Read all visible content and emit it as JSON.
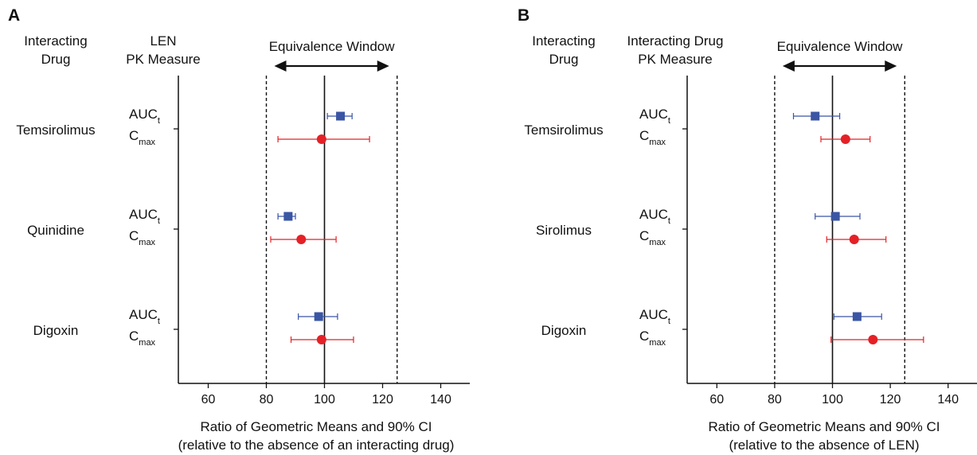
{
  "chart_data": [
    {
      "type": "scatter",
      "panel_label": "A",
      "header_col1": [
        "Interacting",
        "Drug"
      ],
      "header_col2": [
        "LEN",
        "PK Measure"
      ],
      "window_label": "Equivalence Window",
      "xlabel": [
        "Ratio of Geometric Means and 90% CI",
        "(relative to the absence of an interacting drug)"
      ],
      "xlim": [
        50,
        150
      ],
      "xticks": [
        60,
        80,
        100,
        120,
        140
      ],
      "reference_line": 100,
      "equivalence_bounds": [
        80,
        125
      ],
      "measure_labels": {
        "auc_base": "AUC",
        "auc_sub": "t",
        "cmax_base": "C",
        "cmax_sub": "max"
      },
      "drugs": [
        {
          "name": "Temsirolimus",
          "auc": {
            "value": 105.5,
            "ci": [
              101,
              109.5
            ]
          },
          "cmax": {
            "value": 99,
            "ci": [
              84,
              115.5
            ]
          }
        },
        {
          "name": "Quinidine",
          "auc": {
            "value": 87.5,
            "ci": [
              84,
              90
            ]
          },
          "cmax": {
            "value": 92,
            "ci": [
              81.5,
              104
            ]
          }
        },
        {
          "name": "Digoxin",
          "auc": {
            "value": 98,
            "ci": [
              91,
              104.5
            ]
          },
          "cmax": {
            "value": 99,
            "ci": [
              88.5,
              110
            ]
          }
        }
      ]
    },
    {
      "type": "scatter",
      "panel_label": "B",
      "header_col1": [
        "Interacting",
        "Drug"
      ],
      "header_col2": [
        "Interacting Drug",
        "PK Measure"
      ],
      "window_label": "Equivalence Window",
      "xlabel": [
        "Ratio of Geometric Means and 90% CI",
        "(relative to the absence of LEN)"
      ],
      "xlim": [
        50,
        150
      ],
      "xticks": [
        60,
        80,
        100,
        120,
        140
      ],
      "reference_line": 100,
      "equivalence_bounds": [
        80,
        125
      ],
      "measure_labels": {
        "auc_base": "AUC",
        "auc_sub": "t",
        "cmax_base": "C",
        "cmax_sub": "max"
      },
      "drugs": [
        {
          "name": "Temsirolimus",
          "auc": {
            "value": 94,
            "ci": [
              86.5,
              102.5
            ]
          },
          "cmax": {
            "value": 104.5,
            "ci": [
              96,
              113
            ]
          }
        },
        {
          "name": "Sirolimus",
          "auc": {
            "value": 101,
            "ci": [
              94,
              109.5
            ]
          },
          "cmax": {
            "value": 107.5,
            "ci": [
              98,
              118.5
            ]
          }
        },
        {
          "name": "Digoxin",
          "auc": {
            "value": 108.5,
            "ci": [
              100.5,
              117
            ]
          },
          "cmax": {
            "value": 114,
            "ci": [
              99.5,
              131.5
            ]
          }
        }
      ]
    }
  ],
  "colors": {
    "auc": "#3a55a4",
    "cmax": "#e42127",
    "axis": "#111111"
  }
}
